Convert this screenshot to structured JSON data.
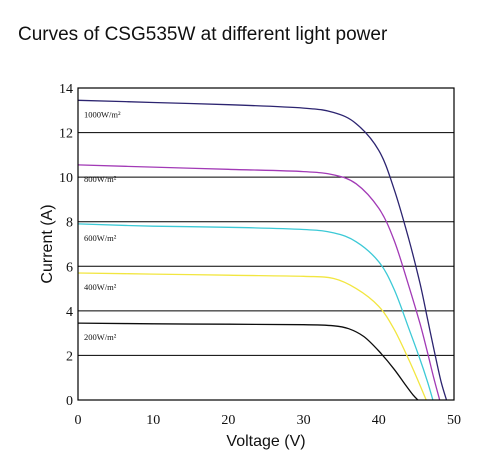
{
  "chart_data": {
    "type": "line",
    "title": "Curves of CSG535W at different light power",
    "xlabel": "Voltage (V)",
    "ylabel": "Current (A)",
    "xlim": [
      0,
      50
    ],
    "ylim": [
      0,
      14
    ],
    "xticks": [
      "0",
      "10",
      "20",
      "30",
      "40",
      "50"
    ],
    "yticks": [
      "0",
      "2",
      "4",
      "6",
      "8",
      "10",
      "12",
      "14"
    ],
    "grid": "horizontal",
    "series": [
      {
        "name": "1000W/m²",
        "color": "#2c2470",
        "x": [
          0,
          10,
          20,
          30,
          34,
          37,
          40,
          42,
          44,
          45.5,
          46.5,
          47.5,
          48.3,
          49
        ],
        "y": [
          13.45,
          13.35,
          13.25,
          13.1,
          12.9,
          12.4,
          11.2,
          9.5,
          7.2,
          5.2,
          3.6,
          2.0,
          0.8,
          0
        ]
      },
      {
        "name": "800W/m²",
        "color": "#a23ab6",
        "x": [
          0,
          10,
          20,
          30,
          34,
          37,
          40,
          42,
          44,
          45.5,
          46.5,
          47.3,
          48.1
        ],
        "y": [
          10.55,
          10.45,
          10.35,
          10.25,
          10.1,
          9.7,
          8.6,
          7.2,
          5.1,
          3.4,
          2.1,
          1.0,
          0
        ]
      },
      {
        "name": "600W/m²",
        "color": "#3cc9d6",
        "x": [
          0,
          10,
          20,
          30,
          34,
          37,
          40,
          42,
          44,
          45.5,
          46.4,
          47.2
        ],
        "y": [
          7.9,
          7.8,
          7.75,
          7.65,
          7.5,
          7.1,
          6.2,
          5.0,
          3.2,
          1.8,
          0.9,
          0
        ]
      },
      {
        "name": "400W/m²",
        "color": "#f2e640",
        "x": [
          0,
          10,
          20,
          30,
          34,
          37,
          40,
          42,
          44,
          45.3,
          46.3
        ],
        "y": [
          5.7,
          5.65,
          5.6,
          5.55,
          5.45,
          5.0,
          4.2,
          3.2,
          1.8,
          0.8,
          0
        ]
      },
      {
        "name": "200W/m²",
        "color": "#0d0d0d",
        "x": [
          0,
          10,
          20,
          30,
          34,
          36,
          38,
          40,
          42,
          43.5,
          44.5,
          45.2
        ],
        "y": [
          3.45,
          3.42,
          3.4,
          3.38,
          3.33,
          3.2,
          2.85,
          2.2,
          1.4,
          0.7,
          0.25,
          0
        ]
      }
    ]
  }
}
